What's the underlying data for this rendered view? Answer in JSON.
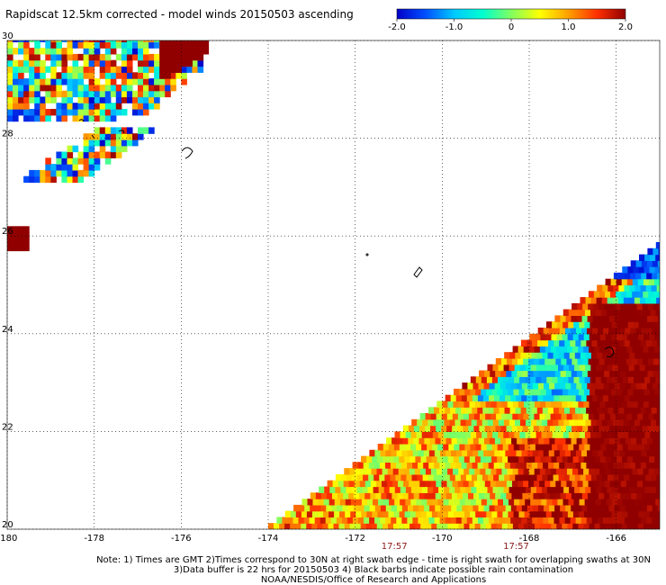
{
  "chart_data": {
    "type": "heatmap",
    "title": "Rapidscat 12.5km corrected - model winds 20150503 ascending",
    "xlim": [
      -180,
      -165
    ],
    "ylim": [
      20,
      30
    ],
    "x_ticks": [
      -180,
      -178,
      -176,
      -174,
      -172,
      -170,
      -168,
      -166
    ],
    "x_tick_labels": [
      "-180",
      "-178",
      "-176",
      "-174",
      "-172",
      "-170",
      "-168",
      "-166"
    ],
    "y_ticks": [
      20,
      22,
      24,
      26,
      28,
      30
    ],
    "y_tick_labels": [
      "20",
      "22",
      "24",
      "26",
      "28",
      "30"
    ],
    "grid": true,
    "colorbar": {
      "range": [
        -2.0,
        2.0
      ],
      "ticks": [
        -2.0,
        -1.0,
        0,
        1.0,
        2.0
      ],
      "tick_labels": [
        "-2.0",
        "-1.0",
        "0",
        "1.0",
        "2.0"
      ],
      "colors": [
        "#0000c8",
        "#0050ff",
        "#00c8ff",
        "#00ffd0",
        "#80ff60",
        "#ffff00",
        "#ffa000",
        "#ff3000",
        "#900000"
      ]
    },
    "swath_times": [
      {
        "label": "17:57",
        "lon": -171.1
      },
      {
        "label": "17:57",
        "lon": -168.3
      }
    ],
    "regions": [
      {
        "name": "upper-left swath",
        "value_range": [
          -2.0,
          2.0
        ],
        "lon_range": [
          -180,
          -175.5
        ],
        "lat_range": [
          27.1,
          30
        ]
      },
      {
        "name": "main swath north edge",
        "mean_value": -1.5
      },
      {
        "name": "main swath center",
        "mean_value": -0.6
      },
      {
        "name": "main swath south-west",
        "mean_value": 0.9
      },
      {
        "name": "main swath south-east",
        "mean_value": 2.0
      }
    ]
  },
  "notes": {
    "line1": "Note: 1) Times are GMT 2)Times correspond to 30N at right swath edge - time is right swath for overlapping swaths at 30N",
    "line2": "3)Data buffer is 22 hrs for 20150503 4) Black barbs indicate possible rain contamination",
    "line3": "NOAA/NESDIS/Office of Research and Applications"
  }
}
